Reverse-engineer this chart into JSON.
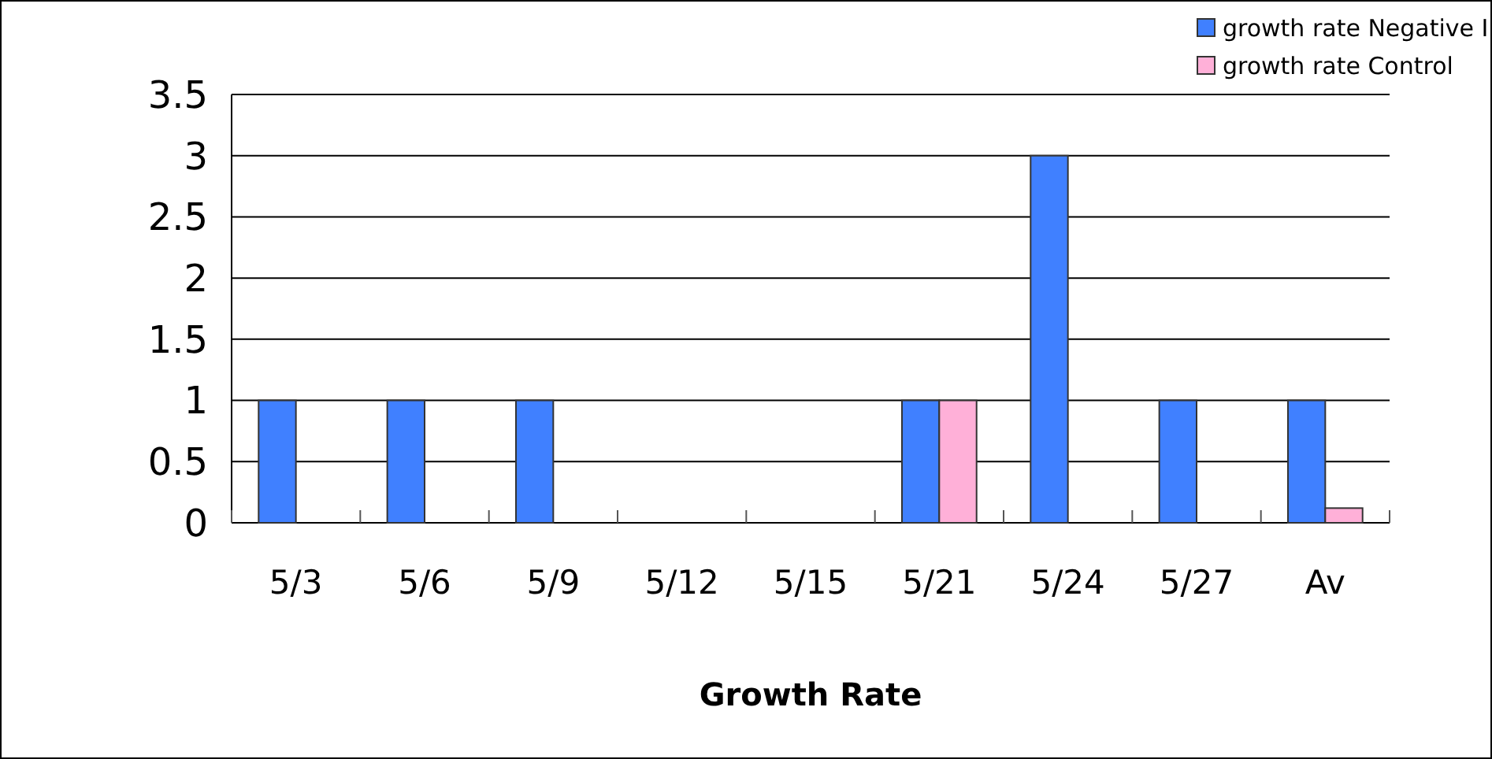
{
  "chart_data": {
    "type": "bar",
    "title": "Growth Rate",
    "categories": [
      "5/3",
      "5/6",
      "5/9",
      "5/12",
      "5/15",
      "5/21",
      "5/24",
      "5/27",
      "Av"
    ],
    "series": [
      {
        "name": "growth rate Negative I",
        "color": "#4080ff",
        "values": [
          1,
          1,
          1,
          0,
          0,
          1,
          3,
          1,
          1
        ]
      },
      {
        "name": "growth rate Control",
        "color": "#ffb0d8",
        "values": [
          0,
          0,
          0,
          0,
          0,
          1,
          0,
          0,
          0.12
        ]
      }
    ],
    "ylim": [
      0,
      3.5
    ],
    "yticks": [
      0,
      0.5,
      1,
      1.5,
      2,
      2.5,
      3,
      3.5
    ],
    "grid": "y",
    "legend": "top right"
  }
}
